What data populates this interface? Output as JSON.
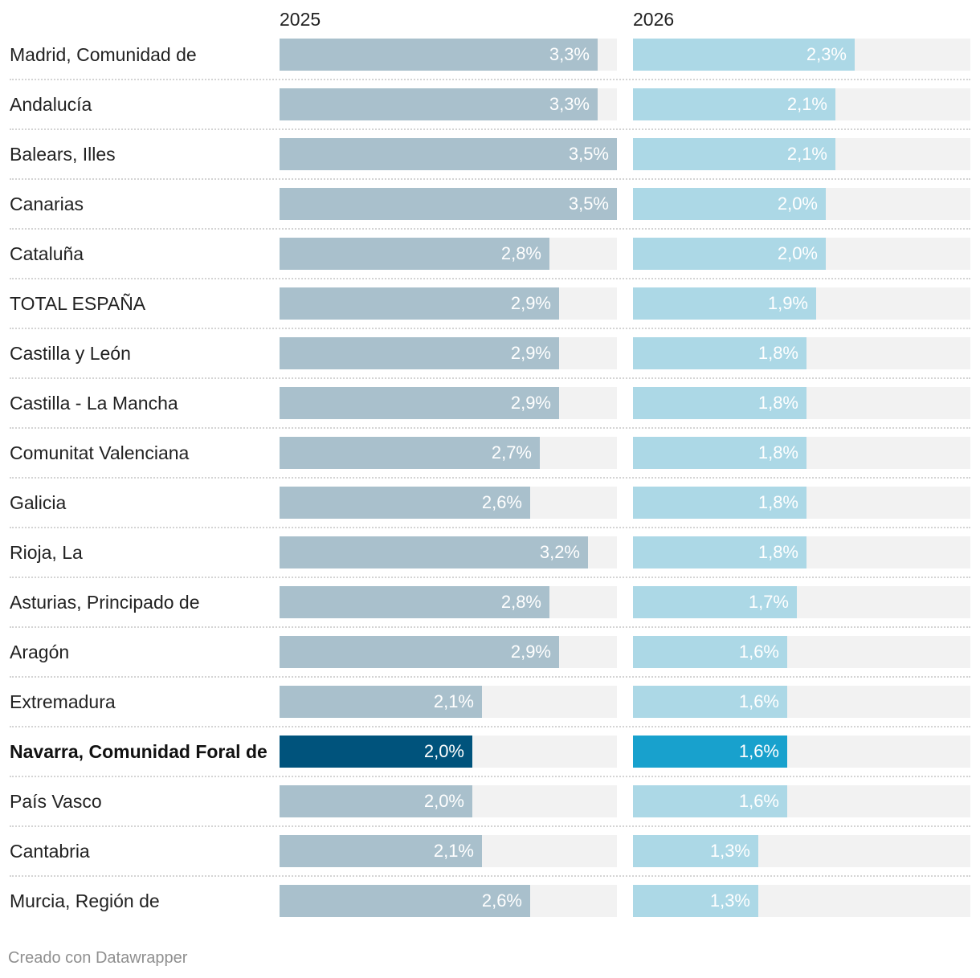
{
  "chart_data": {
    "type": "bar",
    "title": "",
    "xlabel": "",
    "ylabel": "",
    "xlim": [
      0,
      3.5
    ],
    "categories": [
      "Madrid, Comunidad de",
      "Andalucía",
      "Balears, Illes",
      "Canarias",
      "Cataluña",
      "TOTAL ESPAÑA",
      "Castilla y León",
      "Castilla - La Mancha",
      "Comunitat Valenciana",
      "Galicia",
      "Rioja, La",
      "Asturias, Principado de",
      "Aragón",
      "Extremadura",
      "Navarra, Comunidad Foral de",
      "País Vasco",
      "Cantabria",
      "Murcia, Región de"
    ],
    "series": [
      {
        "name": "2025",
        "values": [
          3.3,
          3.3,
          3.5,
          3.5,
          2.8,
          2.9,
          2.9,
          2.9,
          2.7,
          2.6,
          3.2,
          2.8,
          2.9,
          2.1,
          2.0,
          2.0,
          2.1,
          2.6
        ],
        "labels": [
          "3,3%",
          "3,3%",
          "3,5%",
          "3,5%",
          "2,8%",
          "2,9%",
          "2,9%",
          "2,9%",
          "2,7%",
          "2,6%",
          "3,2%",
          "2,8%",
          "2,9%",
          "2,1%",
          "2,0%",
          "2,0%",
          "2,1%",
          "2,6%"
        ],
        "color": "#a9c0cc",
        "highlight_color": "#00537c"
      },
      {
        "name": "2026",
        "values": [
          2.3,
          2.1,
          2.1,
          2.0,
          2.0,
          1.9,
          1.8,
          1.8,
          1.8,
          1.8,
          1.8,
          1.7,
          1.6,
          1.6,
          1.6,
          1.6,
          1.3,
          1.3
        ],
        "labels": [
          "2,3%",
          "2,1%",
          "2,1%",
          "2,0%",
          "2,0%",
          "1,9%",
          "1,8%",
          "1,8%",
          "1,8%",
          "1,8%",
          "1,8%",
          "1,7%",
          "1,6%",
          "1,6%",
          "1,6%",
          "1,6%",
          "1,3%",
          "1,3%"
        ],
        "color": "#acd8e6",
        "highlight_color": "#18a1cd"
      }
    ],
    "highlight": "Navarra, Comunidad Foral de",
    "track_color": "#f2f2f2"
  },
  "footer": "Creado con Datawrapper"
}
